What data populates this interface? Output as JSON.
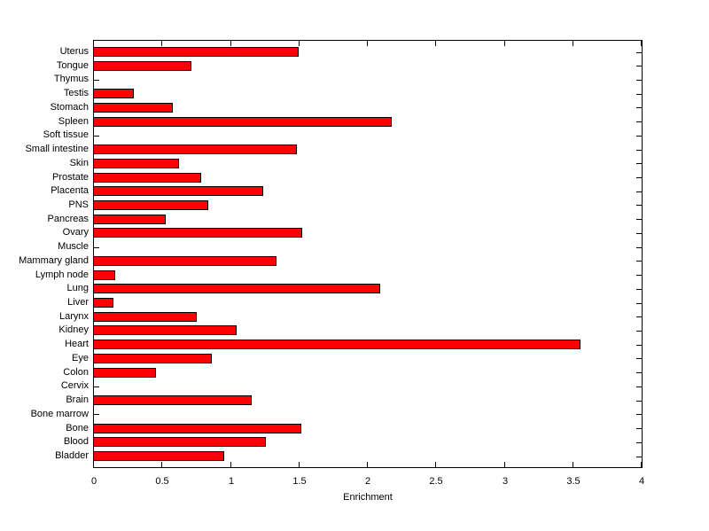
{
  "chart_data": {
    "type": "bar",
    "orientation": "horizontal",
    "title": "",
    "xlabel": "Enrichment",
    "ylabel": "",
    "xlim": [
      0,
      4
    ],
    "x_ticks": [
      0,
      0.5,
      1,
      1.5,
      2,
      2.5,
      3,
      3.5,
      4
    ],
    "x_tick_labels": [
      "0",
      "0.5",
      "1",
      "1.5",
      "2",
      "2.5",
      "3",
      "3.5",
      "4"
    ],
    "grid": false,
    "legend_position": "none",
    "bar_color": "#ff0000",
    "bar_edge_color": "#000000",
    "axis_color": "#000000",
    "background_color": "#ffffff",
    "categories": [
      "Uterus",
      "Tongue",
      "Thymus",
      "Testis",
      "Stomach",
      "Spleen",
      "Soft tissue",
      "Small intestine",
      "Skin",
      "Prostate",
      "Placenta",
      "PNS",
      "Pancreas",
      "Ovary",
      "Muscle",
      "Mammary gland",
      "Lymph node",
      "Lung",
      "Liver",
      "Larynx",
      "Kidney",
      "Heart",
      "Eye",
      "Colon",
      "Cervix",
      "Brain",
      "Bone marrow",
      "Bone",
      "Blood",
      "Bladder"
    ],
    "values": [
      1.5,
      0.72,
      0,
      0.3,
      0.58,
      2.18,
      0,
      1.49,
      0.63,
      0.79,
      1.24,
      0.84,
      0.53,
      1.53,
      0,
      1.34,
      0.16,
      2.1,
      0.15,
      0.76,
      1.05,
      3.56,
      0.87,
      0.46,
      0,
      1.16,
      0,
      1.52,
      1.26,
      0.96
    ],
    "categories_order": "top-to-bottom"
  }
}
